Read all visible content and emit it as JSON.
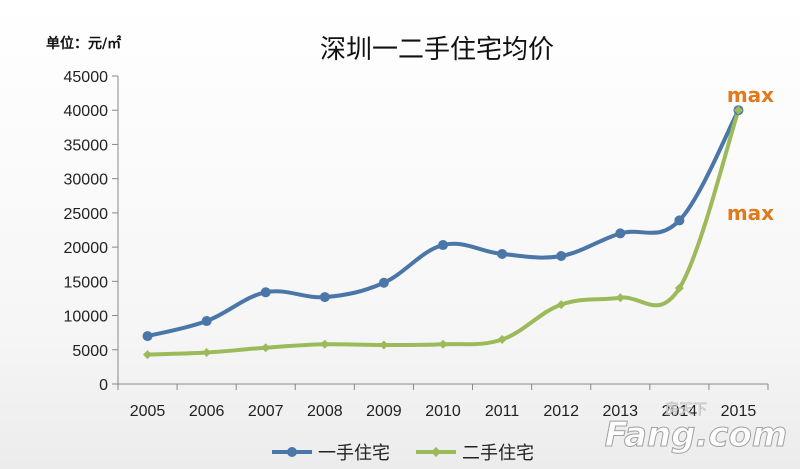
{
  "chart_data": {
    "type": "line",
    "title": "深圳一二手住宅均价",
    "unit_label": "单位：元/㎡",
    "xlabel": "",
    "ylabel": "",
    "categories": [
      "2005",
      "2006",
      "2007",
      "2008",
      "2009",
      "2010",
      "2011",
      "2012",
      "2013",
      "2014",
      "2015"
    ],
    "ylim": [
      0,
      45000
    ],
    "y_ticks": [
      0,
      5000,
      10000,
      15000,
      20000,
      25000,
      30000,
      35000,
      40000,
      45000
    ],
    "grid": false,
    "legend": "bottom",
    "series": [
      {
        "name": "一手住宅",
        "color": "#4a76a8",
        "values": [
          7000,
          9200,
          13400,
          12700,
          14800,
          20300,
          19000,
          18700,
          22000,
          23900,
          40000
        ]
      },
      {
        "name": "二手住宅",
        "color": "#9cba59",
        "values": [
          4300,
          4600,
          5300,
          5800,
          5700,
          5800,
          6500,
          11600,
          12600,
          14000,
          40000
        ]
      }
    ],
    "annotations": [
      {
        "text": "max",
        "series": 0,
        "category": "2015"
      },
      {
        "text": "max",
        "series": 1,
        "category": "2015"
      }
    ]
  },
  "watermark": {
    "text": "Fang.com",
    "small": "房天下"
  }
}
